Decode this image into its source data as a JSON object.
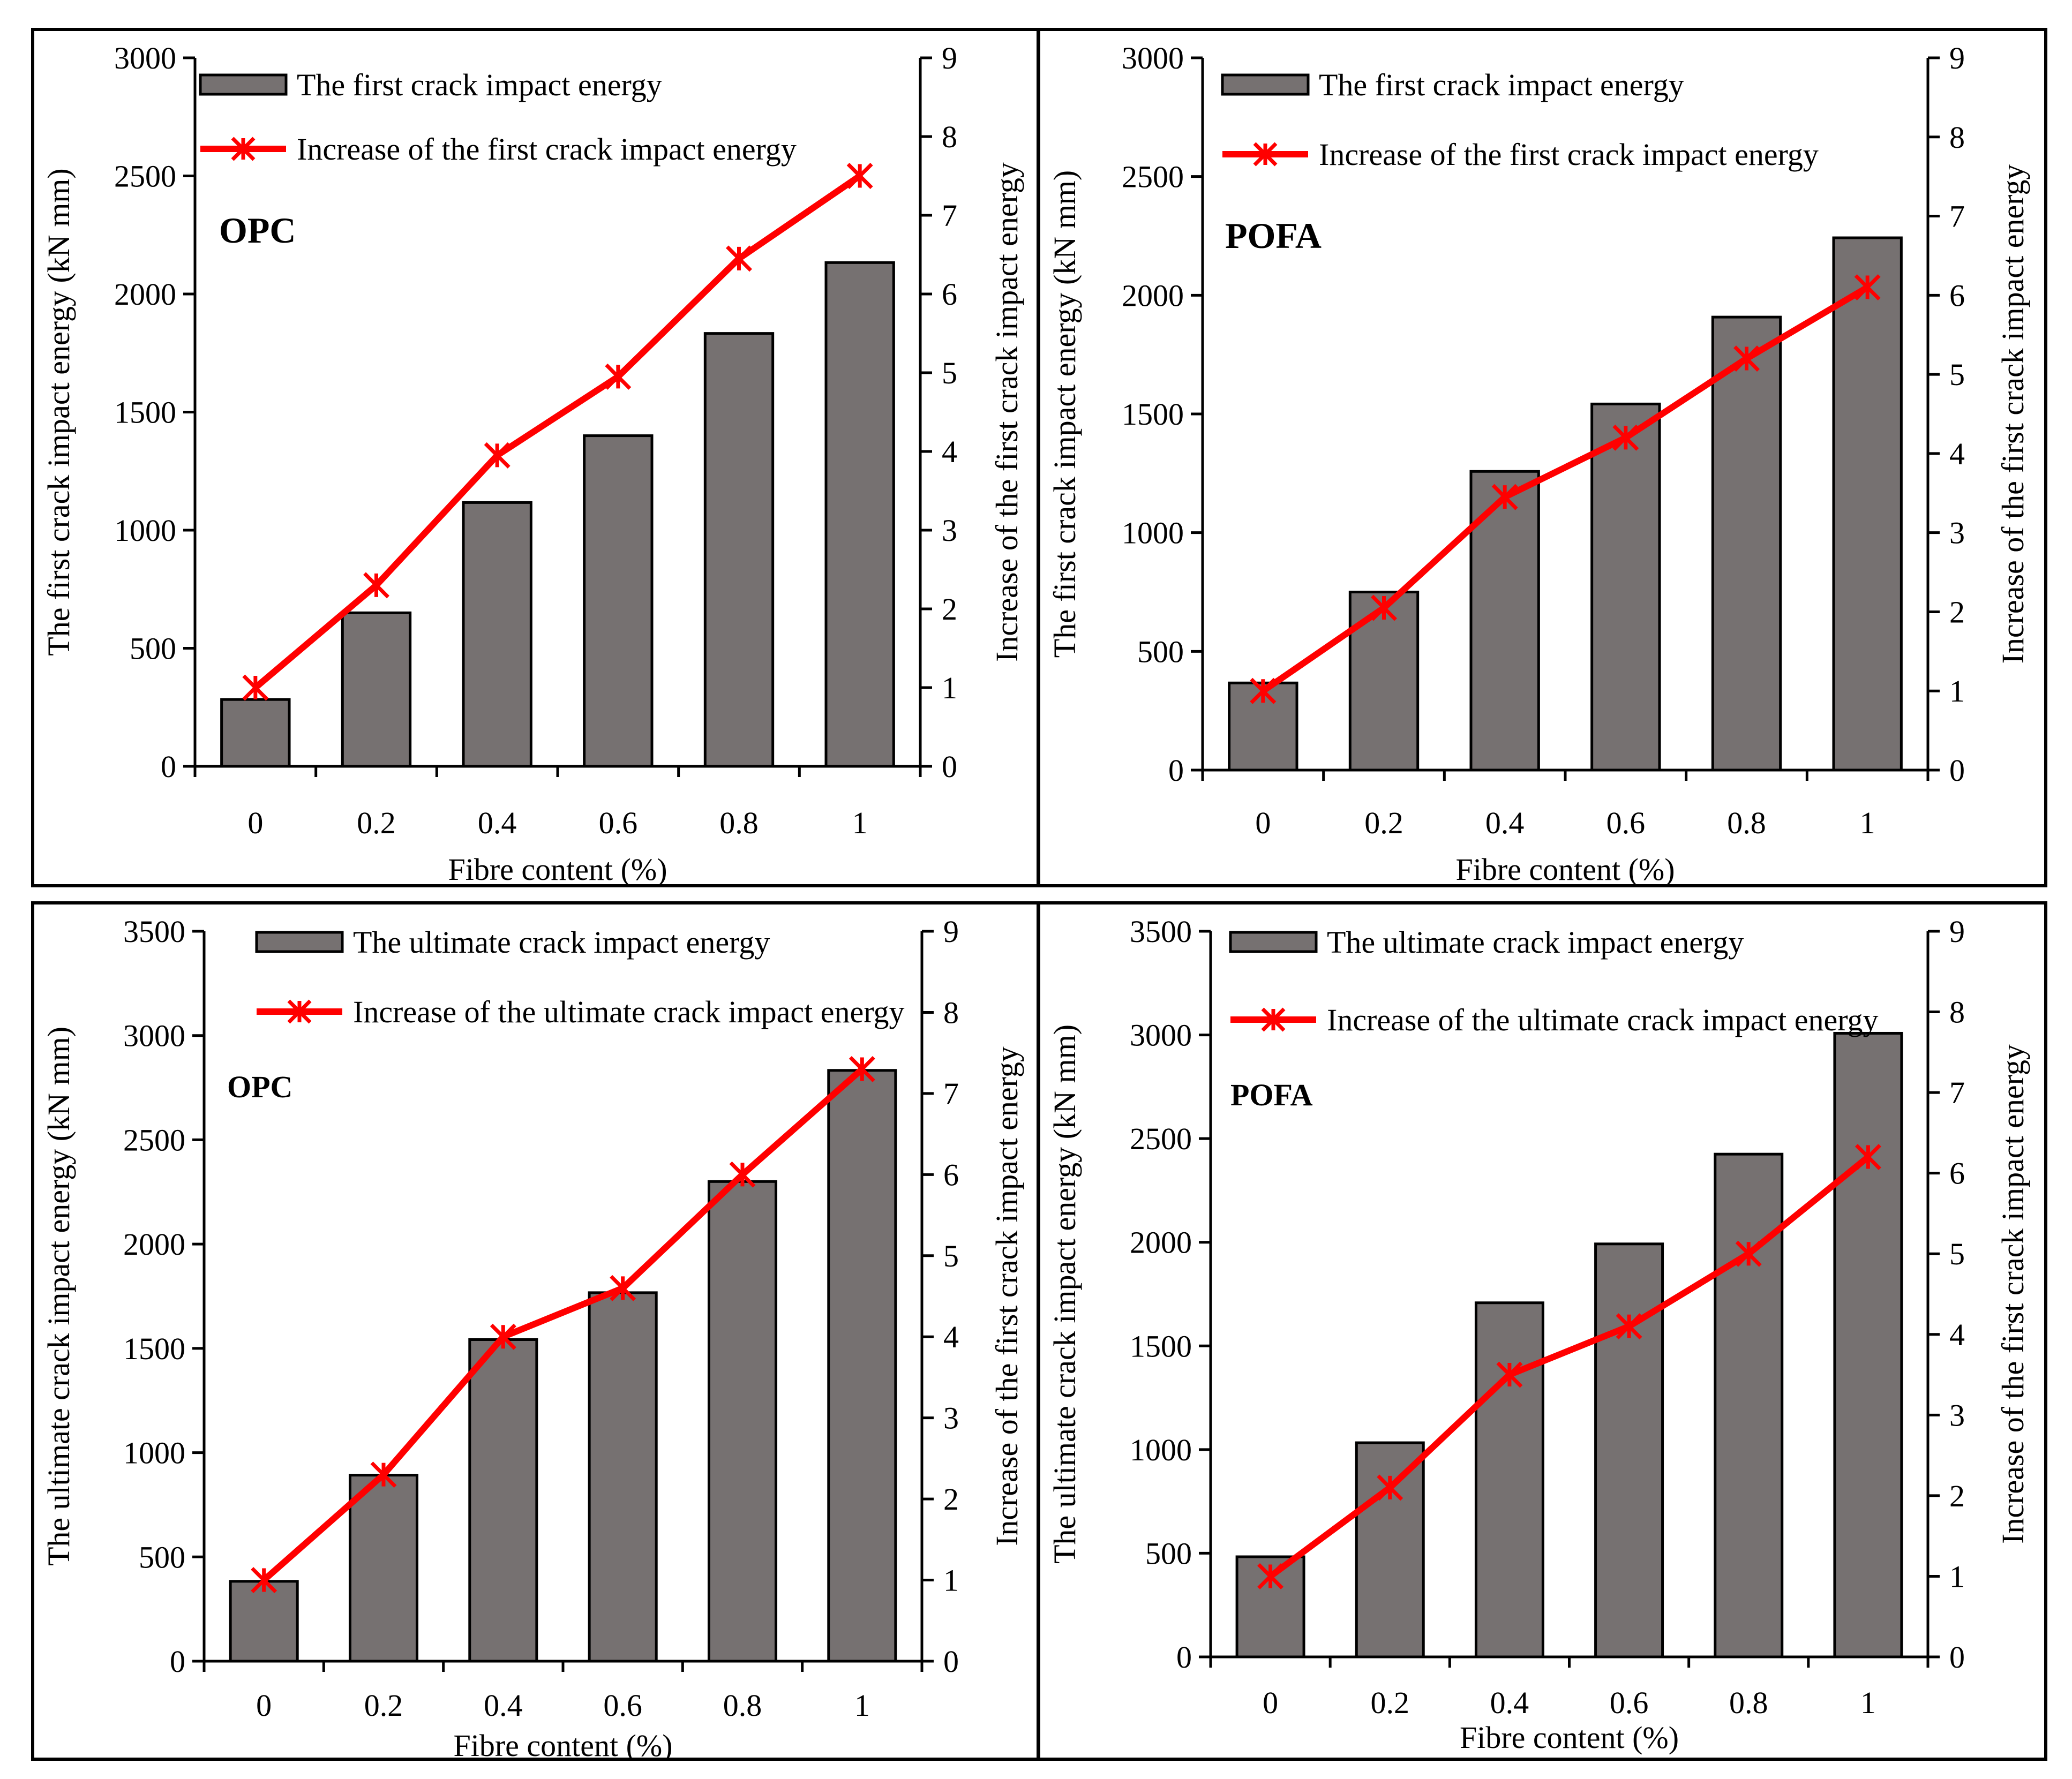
{
  "chart_data": [
    {
      "type": "bar",
      "panel": "top-left",
      "label": "OPC",
      "categories": [
        "0",
        "0.2",
        "0.4",
        "0.6",
        "0.8",
        "1"
      ],
      "xlabel": "Fibre content (%)",
      "ylabel": "The first crack impact energy (kN mm)",
      "y2label": "Increase of the first crack impact energy",
      "ylim": [
        0,
        3000
      ],
      "yticks": [
        "0",
        "500",
        "1000",
        "1500",
        "2000",
        "2500",
        "3000"
      ],
      "y2lim": [
        0,
        9
      ],
      "y2ticks": [
        "0",
        "1",
        "2",
        "3",
        "4",
        "5",
        "6",
        "7",
        "8",
        "9"
      ],
      "bar_series": {
        "name": "The first crack impact energy",
        "values": [
          283,
          650,
          1117,
          1400,
          1833,
          2133
        ]
      },
      "line_series": {
        "name": "Increase of the first crack impact energy",
        "values": [
          1,
          2.3,
          3.95,
          4.95,
          6.45,
          7.5
        ]
      },
      "legend_position": "top-left",
      "bar_color": "#767171",
      "line_color": "#ff0000"
    },
    {
      "type": "bar",
      "panel": "top-right",
      "label": "POFA",
      "categories": [
        "0",
        "0.2",
        "0.4",
        "0.6",
        "0.8",
        "1"
      ],
      "xlabel": "Fibre content (%)",
      "ylabel": "The first crack impact energy (kN mm)",
      "y2label": "Increase of the first crack impact energy",
      "ylim": [
        0,
        3000
      ],
      "yticks": [
        "0",
        "500",
        "1000",
        "1500",
        "2000",
        "2500",
        "3000"
      ],
      "y2lim": [
        0,
        9
      ],
      "y2ticks": [
        "0",
        "1",
        "2",
        "3",
        "4",
        "5",
        "6",
        "7",
        "8",
        "9"
      ],
      "bar_series": {
        "name": "The first crack impact energy",
        "values": [
          367,
          750,
          1258,
          1542,
          1908,
          2242
        ]
      },
      "line_series": {
        "name": "Increase of the first crack impact energy",
        "values": [
          1,
          2.05,
          3.45,
          4.2,
          5.2,
          6.1
        ]
      },
      "legend_position": "top-left",
      "bar_color": "#767171",
      "line_color": "#ff0000"
    },
    {
      "type": "bar",
      "panel": "bottom-left",
      "label": "OPC",
      "categories": [
        "0",
        "0.2",
        "0.4",
        "0.6",
        "0.8",
        "1"
      ],
      "xlabel": "Fibre content (%)",
      "ylabel": "The ultimate crack impact energy (kN mm)",
      "y2label": "Increase of the first crack impact energy",
      "ylim": [
        0,
        3500
      ],
      "yticks": [
        "0",
        "500",
        "1000",
        "1500",
        "2000",
        "2500",
        "3000",
        "3500"
      ],
      "y2lim": [
        0,
        9
      ],
      "y2ticks": [
        "0",
        "1",
        "2",
        "3",
        "4",
        "5",
        "6",
        "7",
        "8",
        "9"
      ],
      "bar_series": {
        "name": "The ultimate crack impact energy",
        "values": [
          383,
          892,
          1542,
          1767,
          2300,
          2833
        ]
      },
      "line_series": {
        "name": "Increase of the ultimate crack impact energy",
        "values": [
          1,
          2.3,
          4,
          4.6,
          6,
          7.3
        ]
      },
      "legend_position": "top-left",
      "bar_color": "#767171",
      "line_color": "#ff0000"
    },
    {
      "type": "bar",
      "panel": "bottom-right",
      "label": "POFA",
      "categories": [
        "0",
        "0.2",
        "0.4",
        "0.6",
        "0.8",
        "1"
      ],
      "xlabel": "Fibre content (%)",
      "ylabel": "The ultimate crack impact energy (kN mm)",
      "y2label": "Increase of the first crack impact energy",
      "ylim": [
        0,
        3500
      ],
      "yticks": [
        "0",
        "500",
        "1000",
        "1500",
        "2000",
        "2500",
        "3000",
        "3500"
      ],
      "y2lim": [
        0,
        9
      ],
      "y2ticks": [
        "0",
        "1",
        "2",
        "3",
        "4",
        "5",
        "6",
        "7",
        "8",
        "9"
      ],
      "bar_series": {
        "name": "The ultimate crack impact energy",
        "values": [
          483,
          1033,
          1708,
          1992,
          2425,
          3008
        ]
      },
      "line_series": {
        "name": "Increase of the ultimate crack impact energy",
        "values": [
          1,
          2.1,
          3.5,
          4.1,
          5,
          6.2
        ]
      },
      "legend_position": "top-left",
      "bar_color": "#767171",
      "line_color": "#ff0000"
    }
  ]
}
